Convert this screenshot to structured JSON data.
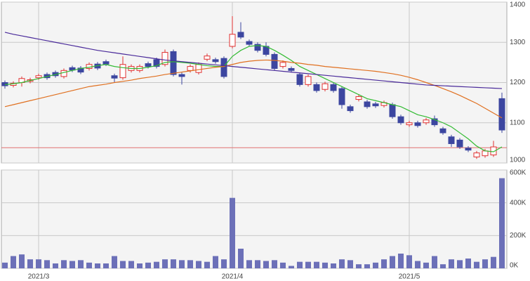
{
  "chart_data": [
    {
      "type": "candlestick",
      "categories": [
        null,
        null,
        null,
        null,
        "2021/3",
        null,
        null,
        null,
        null,
        null,
        null,
        null,
        null,
        null,
        null,
        null,
        null,
        null,
        null,
        null,
        null,
        null,
        null,
        null,
        null,
        null,
        null,
        "2021/4",
        null,
        null,
        null,
        null,
        null,
        null,
        null,
        null,
        null,
        null,
        null,
        null,
        null,
        null,
        null,
        null,
        null,
        null,
        null,
        null,
        "2021/5",
        null,
        null,
        null,
        null,
        null,
        null,
        null,
        null,
        null,
        null,
        null
      ],
      "open": [
        1200,
        1193,
        1200,
        1203,
        1212,
        1220,
        1225,
        1215,
        1237,
        1236,
        1235,
        1246,
        1252,
        1217,
        1212,
        1230,
        1230,
        1247,
        1257,
        1245,
        1277,
        1220,
        1230,
        1225,
        1258,
        1257,
        1260,
        1290,
        1325,
        1302,
        1295,
        1290,
        1270,
        1240,
        1235,
        1220,
        1195,
        1195,
        1183,
        1195,
        1185,
        1140,
        1158,
        1152,
        1147,
        1143,
        1145,
        1115,
        1095,
        1100,
        1100,
        1110,
        1085,
        1065,
        1057,
        1037,
        1015,
        1018,
        1020,
        1160
      ],
      "high": [
        1205,
        1203,
        1215,
        1212,
        1222,
        1225,
        1230,
        1235,
        1242,
        1241,
        1250,
        1251,
        1257,
        1222,
        1265,
        1245,
        1245,
        1252,
        1262,
        1282,
        1282,
        1225,
        1245,
        1250,
        1272,
        1262,
        1265,
        1365,
        1350,
        1307,
        1300,
        1300,
        1275,
        1255,
        1240,
        1225,
        1220,
        1200,
        1202,
        1200,
        1190,
        1145,
        1170,
        1157,
        1152,
        1155,
        1150,
        1120,
        1105,
        1105,
        1112,
        1118,
        1090,
        1070,
        1062,
        1042,
        1030,
        1035,
        1055,
        1175
      ],
      "low": [
        1185,
        1188,
        1190,
        1198,
        1207,
        1207,
        1212,
        1210,
        1226,
        1221,
        1230,
        1231,
        1241,
        1200,
        1207,
        1225,
        1225,
        1235,
        1235,
        1240,
        1215,
        1195,
        1225,
        1220,
        1253,
        1247,
        1210,
        1285,
        1308,
        1290,
        1275,
        1265,
        1230,
        1235,
        1225,
        1190,
        1190,
        1175,
        1178,
        1175,
        1135,
        1125,
        1153,
        1135,
        1137,
        1138,
        1110,
        1095,
        1090,
        1088,
        1095,
        1090,
        1070,
        1040,
        1035,
        1027,
        1010,
        1013,
        1015,
        1075
      ],
      "close": [
        1192,
        1198,
        1210,
        1207,
        1217,
        1212,
        1217,
        1230,
        1231,
        1226,
        1245,
        1236,
        1246,
        1211,
        1245,
        1240,
        1240,
        1240,
        1240,
        1275,
        1220,
        1215,
        1240,
        1245,
        1266,
        1252,
        1215,
        1320,
        1313,
        1295,
        1280,
        1270,
        1235,
        1250,
        1230,
        1195,
        1215,
        1180,
        1197,
        1180,
        1145,
        1130,
        1165,
        1140,
        1142,
        1150,
        1115,
        1100,
        1100,
        1093,
        1107,
        1095,
        1075,
        1048,
        1040,
        1032,
        1025,
        1030,
        1040,
        1082
      ],
      "up_color": "#e03030",
      "down_color": "#3c46a0",
      "lines": [
        {
          "color": "#33bb33",
          "values": [
            1195,
            1197,
            1200,
            1205,
            1210,
            1215,
            1220,
            1225,
            1230,
            1235,
            1238,
            1242,
            1245,
            1240,
            1237,
            1235,
            1235,
            1238,
            1242,
            1250,
            1252,
            1250,
            1248,
            1245,
            1242,
            1240,
            1240,
            1265,
            1280,
            1290,
            1292,
            1290,
            1280,
            1268,
            1255,
            1240,
            1230,
            1220,
            1210,
            1200,
            1190,
            1180,
            1170,
            1160,
            1155,
            1150,
            1145,
            1140,
            1130,
            1120,
            1115,
            1108,
            1100,
            1090,
            1075,
            1060,
            1042,
            1030,
            1028,
            1040
          ]
        },
        {
          "color": "#e07020",
          "values": [
            1140,
            1145,
            1150,
            1155,
            1160,
            1165,
            1170,
            1175,
            1180,
            1185,
            1190,
            1193,
            1196,
            1200,
            1203,
            1206,
            1210,
            1213,
            1216,
            1220,
            1223,
            1226,
            1229,
            1232,
            1235,
            1238,
            1240,
            1245,
            1250,
            1253,
            1255,
            1256,
            1255,
            1253,
            1250,
            1248,
            1245,
            1243,
            1240,
            1238,
            1236,
            1234,
            1232,
            1230,
            1228,
            1225,
            1222,
            1218,
            1213,
            1207,
            1200,
            1193,
            1185,
            1177,
            1168,
            1158,
            1148,
            1136,
            1124,
            1112
          ]
        },
        {
          "color": "#4a2a9a",
          "values": [
            1325,
            1320,
            1316,
            1312,
            1308,
            1304,
            1300,
            1296,
            1292,
            1288,
            1284,
            1280,
            1277,
            1274,
            1271,
            1268,
            1265,
            1262,
            1259,
            1256,
            1254,
            1252,
            1250,
            1248,
            1246,
            1244,
            1242,
            1240,
            1238,
            1236,
            1234,
            1232,
            1230,
            1228,
            1226,
            1224,
            1222,
            1220,
            1218,
            1216,
            1214,
            1212,
            1210,
            1208,
            1206,
            1204,
            1202,
            1200,
            1198,
            1196,
            1194,
            1193,
            1192,
            1191,
            1190,
            1189,
            1188,
            1187,
            1186,
            1185
          ]
        }
      ],
      "hline": {
        "value": 1038,
        "color": "#e07070"
      },
      "ylim": [
        1000,
        1400
      ],
      "yticks": [
        1000,
        1100,
        1200,
        1300,
        1400
      ],
      "grid": true
    },
    {
      "type": "bar",
      "color": "#6c70b8",
      "values": [
        35000,
        75000,
        85000,
        55000,
        55000,
        50000,
        30000,
        50000,
        45000,
        50000,
        35000,
        30000,
        30000,
        75000,
        45000,
        45000,
        30000,
        35000,
        40000,
        55000,
        55000,
        50000,
        50000,
        45000,
        40000,
        75000,
        55000,
        430000,
        120000,
        50000,
        50000,
        45000,
        50000,
        35000,
        15000,
        40000,
        40000,
        40000,
        35000,
        30000,
        55000,
        50000,
        25000,
        25000,
        35000,
        55000,
        75000,
        90000,
        80000,
        45000,
        35000,
        75000,
        25000,
        55000,
        50000,
        60000,
        40000,
        55000,
        70000,
        550000
      ],
      "ylim": [
        0,
        600000
      ],
      "yticks": [
        {
          "value": 0,
          "label": "0K"
        },
        {
          "value": 200000,
          "label": "200K"
        },
        {
          "value": 400000,
          "label": "400K"
        },
        {
          "value": 600000,
          "label": "600K"
        }
      ],
      "grid": true
    }
  ]
}
